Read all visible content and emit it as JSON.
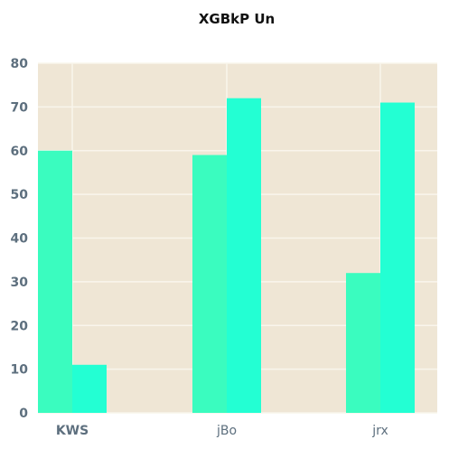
{
  "chart_data": {
    "type": "bar",
    "title": "XGBkP Un",
    "xlabel": "",
    "ylabel": "",
    "categories": [
      "KWS",
      "jBo",
      "jrx"
    ],
    "series": [
      {
        "values": [
          60,
          59,
          32
        ]
      },
      {
        "values": [
          11,
          72,
          71
        ]
      }
    ],
    "ylim": [
      0,
      80
    ],
    "yticks": [
      0,
      10,
      20,
      30,
      40,
      50,
      60,
      70,
      80
    ],
    "grid": true,
    "legend": "none",
    "colors": {
      "background": "#efe6d5",
      "grid": "#f9f5ec",
      "series": [
        "#3afcbf",
        "#23ffd3"
      ],
      "ticks": "#5d6f7e",
      "title": "#111111"
    }
  }
}
